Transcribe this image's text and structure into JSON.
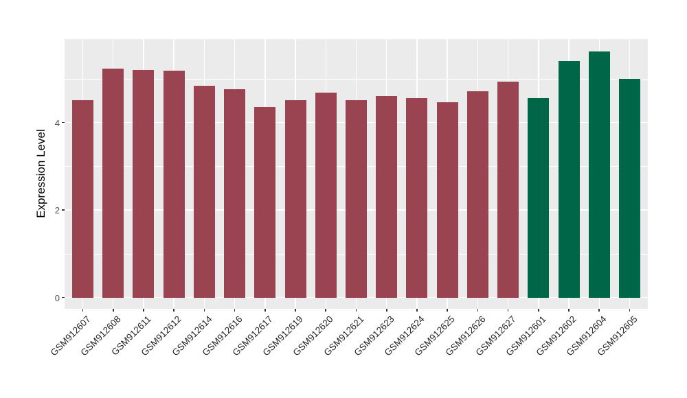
{
  "chart_data": {
    "type": "bar",
    "title": "",
    "xlabel": "",
    "ylabel": "Expression Level",
    "categories": [
      "GSM912607",
      "GSM912608",
      "GSM912611",
      "GSM912612",
      "GSM912614",
      "GSM912616",
      "GSM912617",
      "GSM912619",
      "GSM912620",
      "GSM912621",
      "GSM912623",
      "GSM912624",
      "GSM912625",
      "GSM912626",
      "GSM912627",
      "GSM912601",
      "GSM912602",
      "GSM912604",
      "GSM912605"
    ],
    "values": [
      4.51,
      5.23,
      5.2,
      5.19,
      4.84,
      4.76,
      4.36,
      4.51,
      4.68,
      4.51,
      4.6,
      4.55,
      4.47,
      4.71,
      4.94,
      4.55,
      5.41,
      5.63,
      4.99
    ],
    "group_index": [
      0,
      0,
      0,
      0,
      0,
      0,
      0,
      0,
      0,
      0,
      0,
      0,
      0,
      0,
      0,
      1,
      1,
      1,
      1
    ],
    "group_colors": [
      "#9A4452",
      "#006648"
    ],
    "y_ticks": [
      0,
      2,
      4
    ],
    "y_minor_ticks": [
      1,
      3,
      5
    ],
    "ylim": [
      0,
      5.9
    ],
    "x_label_angle_deg": 45,
    "grid": true,
    "legend": null,
    "panel_background": "#EBEBEB",
    "gridline_color": "#FFFFFF",
    "tick_color": "#333333",
    "axis_text_color": "#4D4D4D"
  }
}
